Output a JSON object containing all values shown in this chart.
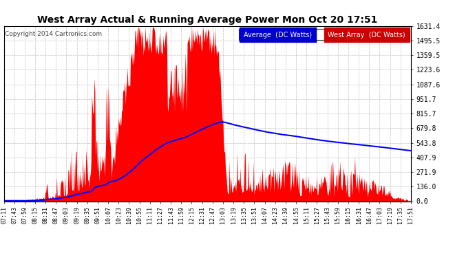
{
  "title": "West Array Actual & Running Average Power Mon Oct 20 17:51",
  "copyright": "Copyright 2014 Cartronics.com",
  "legend_labels": [
    "Average  (DC Watts)",
    "West Array  (DC Watts)"
  ],
  "y_ticks": [
    0.0,
    136.0,
    271.9,
    407.9,
    543.8,
    679.8,
    815.7,
    951.7,
    1087.6,
    1223.6,
    1359.5,
    1495.5,
    1631.4
  ],
  "ylim": [
    0,
    1631.4
  ],
  "background_color": "#ffffff",
  "grid_color": "#b0b0b0",
  "fill_color": "#ff0000",
  "line_color": "#0000ff",
  "x_labels": [
    "07:11",
    "07:43",
    "07:59",
    "08:15",
    "08:31",
    "08:47",
    "09:03",
    "09:19",
    "09:35",
    "09:51",
    "10:07",
    "10:23",
    "10:39",
    "10:55",
    "11:11",
    "11:27",
    "11:43",
    "11:59",
    "12:15",
    "12:31",
    "12:47",
    "13:03",
    "13:19",
    "13:35",
    "13:51",
    "14:07",
    "14:23",
    "14:39",
    "14:55",
    "15:11",
    "15:27",
    "15:43",
    "15:59",
    "16:15",
    "16:31",
    "16:47",
    "17:03",
    "17:19",
    "17:35",
    "17:51"
  ]
}
